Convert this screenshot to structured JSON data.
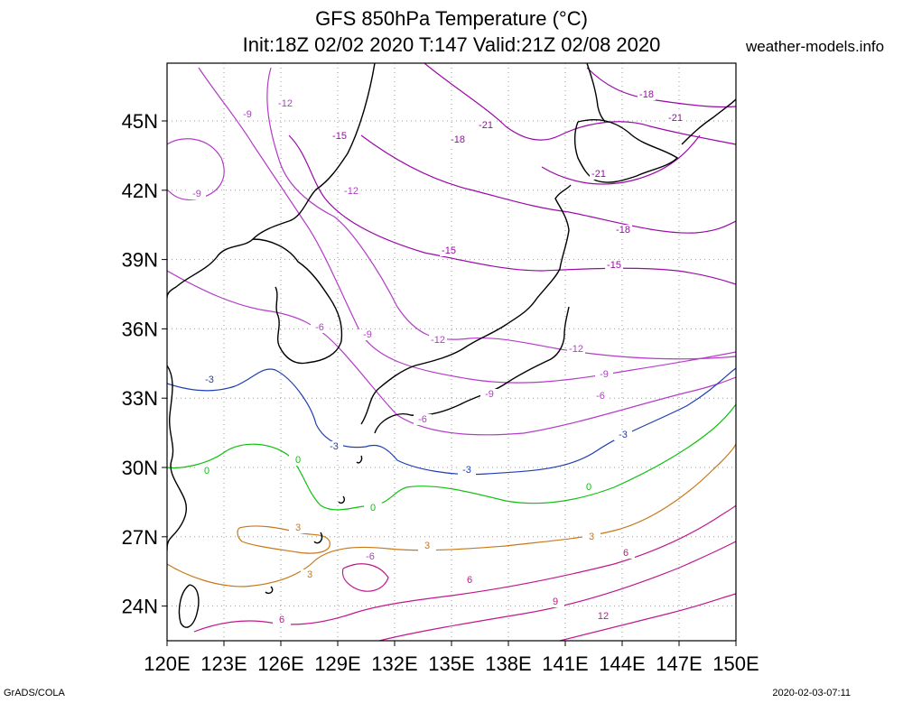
{
  "header": {
    "title_line1": "GFS 850hPa Temperature (°C)",
    "title_line2": "Init:18Z 02/02 2020 T:147 Valid:21Z 02/08 2020",
    "brand": "weather-models.info"
  },
  "footer": {
    "left": "GrADS/COLA",
    "right": "2020-02-03-07:11"
  },
  "map": {
    "lon_range": [
      120,
      150
    ],
    "lat_range": [
      22.5,
      47.5
    ],
    "x_ticks": [
      "120E",
      "123E",
      "126E",
      "129E",
      "132E",
      "135E",
      "138E",
      "141E",
      "144E",
      "147E",
      "150E"
    ],
    "y_ticks": [
      "24N",
      "27N",
      "30N",
      "33N",
      "36N",
      "39N",
      "42N",
      "45N"
    ],
    "grid": "dotted",
    "colors": {
      "coast": "#000000",
      "grid": "#9a9a9a",
      "neg_high": "#9a0aa8",
      "neg_low": "#b43cc8",
      "minus3": "#1e3fb4",
      "zero": "#10c010",
      "plus3": "#c87818",
      "pos": "#c0188c"
    },
    "contours": [
      {
        "level": "-21",
        "class": "neg_high"
      },
      {
        "level": "-18",
        "class": "neg_high"
      },
      {
        "level": "-15",
        "class": "neg_high"
      },
      {
        "level": "-12",
        "class": "neg_low"
      },
      {
        "level": "-9",
        "class": "neg_low"
      },
      {
        "level": "-6",
        "class": "neg_low"
      },
      {
        "level": "-3",
        "class": "minus3"
      },
      {
        "level": "0",
        "class": "zero"
      },
      {
        "level": "3",
        "class": "plus3"
      },
      {
        "level": "6",
        "class": "pos"
      },
      {
        "level": "9",
        "class": "pos"
      },
      {
        "level": "12",
        "class": "pos"
      }
    ]
  }
}
